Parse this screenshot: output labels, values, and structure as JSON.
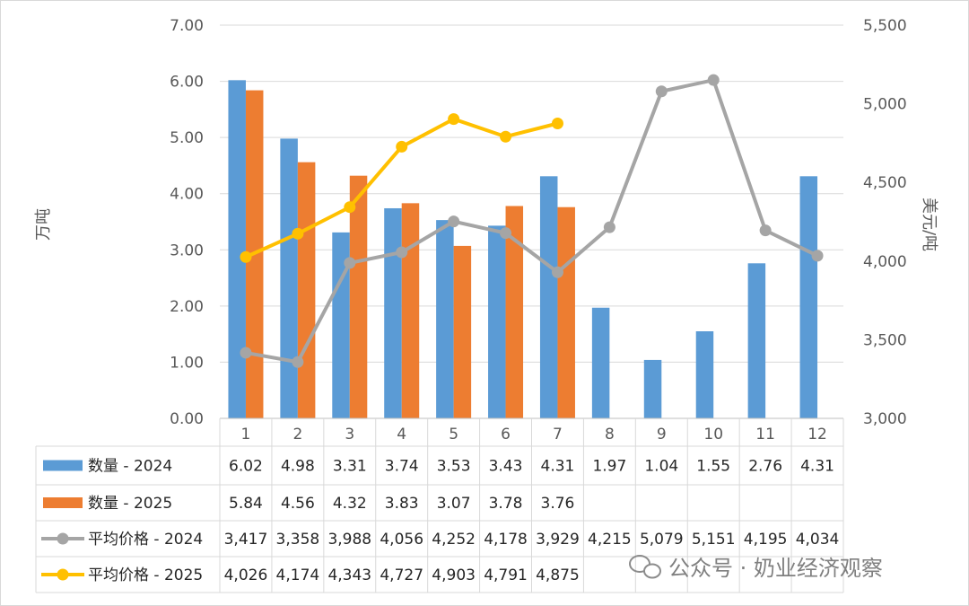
{
  "chart_data": {
    "type": "bar+line",
    "title": "",
    "categories": [
      "1",
      "2",
      "3",
      "4",
      "5",
      "6",
      "7",
      "8",
      "9",
      "10",
      "11",
      "12"
    ],
    "ylabel_left": "万吨",
    "ylabel_right": "美元/吨",
    "ylim_left": [
      0,
      7
    ],
    "ylim_right": [
      3000,
      5500
    ],
    "yticks_left": [
      "0.00",
      "1.00",
      "2.00",
      "3.00",
      "4.00",
      "5.00",
      "6.00",
      "7.00"
    ],
    "yticks_right": [
      "3,000",
      "3,500",
      "4,000",
      "4,500",
      "5,000",
      "5,500"
    ],
    "grid": true,
    "legend": "data-table-bottom",
    "series": [
      {
        "name": "数量 - 2024",
        "kind": "bar",
        "axis": "left",
        "color": "#5B9BD5",
        "values": [
          6.02,
          4.98,
          3.31,
          3.74,
          3.53,
          3.43,
          4.31,
          1.97,
          1.04,
          1.55,
          2.76,
          4.31
        ],
        "labels": [
          "6.02",
          "4.98",
          "3.31",
          "3.74",
          "3.53",
          "3.43",
          "4.31",
          "1.97",
          "1.04",
          "1.55",
          "2.76",
          "4.31"
        ]
      },
      {
        "name": "数量 - 2025",
        "kind": "bar",
        "axis": "left",
        "color": "#ED7D31",
        "values": [
          5.84,
          4.56,
          4.32,
          3.83,
          3.07,
          3.78,
          3.76,
          null,
          null,
          null,
          null,
          null
        ],
        "labels": [
          "5.84",
          "4.56",
          "4.32",
          "3.83",
          "3.07",
          "3.78",
          "3.76",
          "",
          "",
          "",
          "",
          ""
        ]
      },
      {
        "name": "平均价格 - 2024",
        "kind": "line",
        "axis": "right",
        "color": "#A5A5A5",
        "values": [
          3417,
          3358,
          3988,
          4056,
          4252,
          4178,
          3929,
          4215,
          5079,
          5151,
          4195,
          4034
        ],
        "labels": [
          "3,417",
          "3,358",
          "3,988",
          "4,056",
          "4,252",
          "4,178",
          "3,929",
          "4,215",
          "5,079",
          "5,151",
          "4,195",
          "4,034"
        ]
      },
      {
        "name": "平均价格 - 2025",
        "kind": "line",
        "axis": "right",
        "color": "#FFC000",
        "values": [
          4026,
          4174,
          4343,
          4727,
          4903,
          4791,
          4875,
          null,
          null,
          null,
          null,
          null
        ],
        "labels": [
          "4,026",
          "4,174",
          "4,343",
          "4,727",
          "4,903",
          "4,791",
          "4,875",
          "",
          "",
          "",
          "",
          ""
        ]
      }
    ]
  },
  "watermark": "公众号 · 奶业经济观察"
}
